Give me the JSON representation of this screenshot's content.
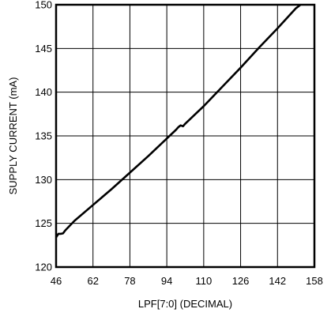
{
  "chart_data": {
    "type": "line",
    "title": "",
    "xlabel": "LPF[7:0] (DECIMAL)",
    "ylabel": "SUPPLY CURRENT (mA)",
    "xlim": [
      46,
      158
    ],
    "ylim": [
      120,
      150
    ],
    "x_ticks": [
      "46",
      "62",
      "78",
      "94",
      "110",
      "126",
      "142",
      "158"
    ],
    "y_ticks": [
      "120",
      "125",
      "130",
      "135",
      "140",
      "145",
      "150"
    ],
    "grid": true,
    "series": [
      {
        "name": "",
        "color": "#000000",
        "points": [
          [
            46,
            123.4
          ],
          [
            47,
            123.8
          ],
          [
            48,
            123.8
          ],
          [
            49,
            123.85
          ],
          [
            50,
            124.2
          ],
          [
            54,
            125.3
          ],
          [
            62,
            127.1
          ],
          [
            70,
            128.9
          ],
          [
            78,
            130.8
          ],
          [
            86,
            132.7
          ],
          [
            94,
            134.7
          ],
          [
            98,
            135.7
          ],
          [
            99,
            136.0
          ],
          [
            100,
            136.2
          ],
          [
            101,
            136.1
          ],
          [
            102,
            136.4
          ],
          [
            110,
            138.4
          ],
          [
            118,
            140.6
          ],
          [
            126,
            142.8
          ],
          [
            134,
            145.1
          ],
          [
            142,
            147.3
          ],
          [
            150,
            149.6
          ],
          [
            152,
            150.0
          ]
        ]
      }
    ]
  }
}
